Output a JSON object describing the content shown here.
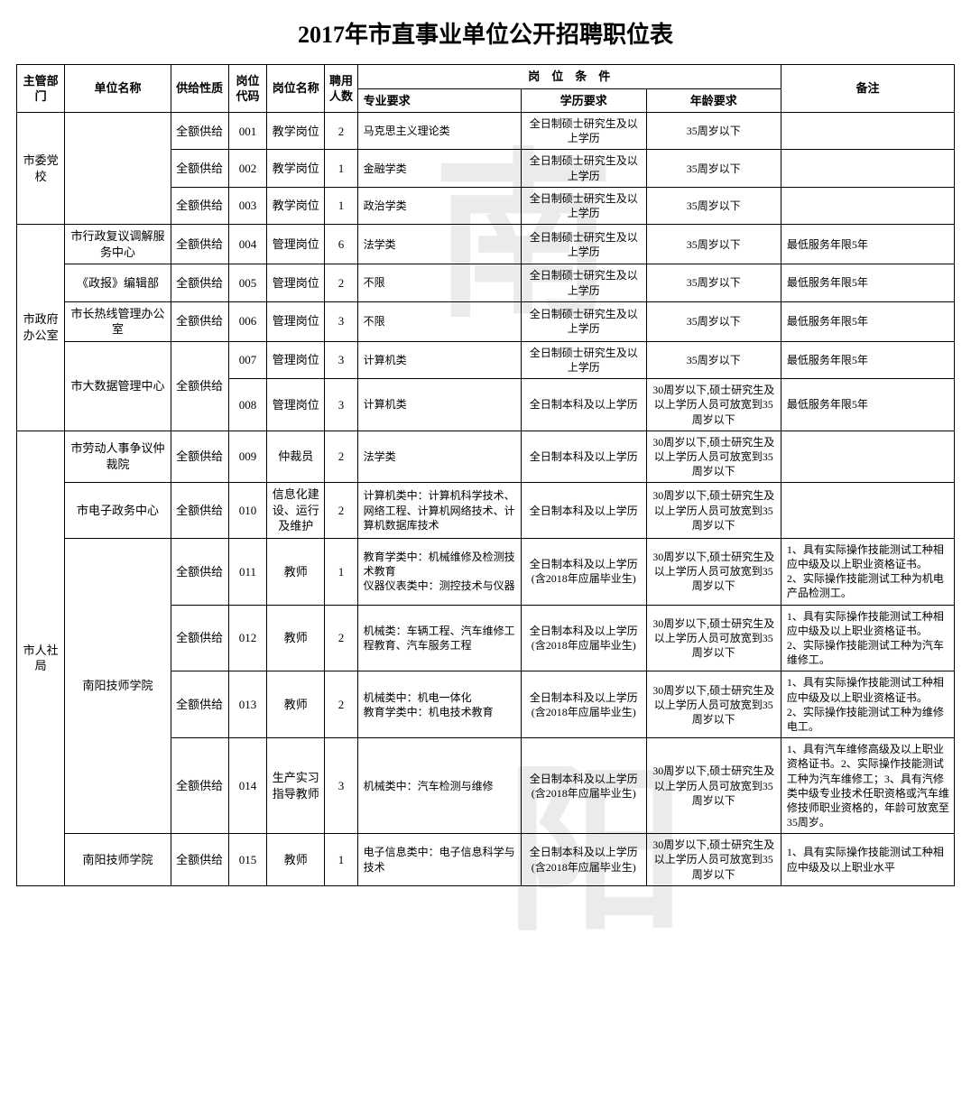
{
  "title": "2017年市直事业单位公开招聘职位表",
  "headers": {
    "dept": "主管部门",
    "unit": "单位名称",
    "supply": "供给性质",
    "code": "岗位代码",
    "posname": "岗位名称",
    "count": "聘用人数",
    "cond_group": "岗　位　条　件",
    "major": "专业要求",
    "edu": "学历要求",
    "age": "年龄要求",
    "note": "备注"
  },
  "depts": [
    {
      "name": "市委党校",
      "units": [
        {
          "name": "",
          "rows": [
            {
              "supply": "全额供给",
              "code": "001",
              "posname": "教学岗位",
              "count": "2",
              "major": "马克思主义理论类",
              "edu": "全日制硕士研究生及以上学历",
              "age": "35周岁以下",
              "note": ""
            },
            {
              "supply": "全额供给",
              "code": "002",
              "posname": "教学岗位",
              "count": "1",
              "major": "金融学类",
              "edu": "全日制硕士研究生及以上学历",
              "age": "35周岁以下",
              "note": ""
            },
            {
              "supply": "全额供给",
              "code": "003",
              "posname": "教学岗位",
              "count": "1",
              "major": "政治学类",
              "edu": "全日制硕士研究生及以上学历",
              "age": "35周岁以下",
              "note": ""
            }
          ]
        }
      ]
    },
    {
      "name": "市政府办公室",
      "units": [
        {
          "name": "市行政复议调解服务中心",
          "rows": [
            {
              "supply": "全额供给",
              "code": "004",
              "posname": "管理岗位",
              "count": "6",
              "major": "法学类",
              "edu": "全日制硕士研究生及以上学历",
              "age": "35周岁以下",
              "note": "最低服务年限5年"
            }
          ]
        },
        {
          "name": "《政报》编辑部",
          "rows": [
            {
              "supply": "全额供给",
              "code": "005",
              "posname": "管理岗位",
              "count": "2",
              "major": "不限",
              "edu": "全日制硕士研究生及以上学历",
              "age": "35周岁以下",
              "note": "最低服务年限5年"
            }
          ]
        },
        {
          "name": "市长热线管理办公室",
          "rows": [
            {
              "supply": "全额供给",
              "code": "006",
              "posname": "管理岗位",
              "count": "3",
              "major": "不限",
              "edu": "全日制硕士研究生及以上学历",
              "age": "35周岁以下",
              "note": "最低服务年限5年"
            }
          ]
        },
        {
          "name": "市大数据管理中心",
          "rows": [
            {
              "supply": "全额供给",
              "code": "007",
              "posname": "管理岗位",
              "count": "3",
              "major": "计算机类",
              "edu": "全日制硕士研究生及以上学历",
              "age": "35周岁以下",
              "note": "最低服务年限5年"
            },
            {
              "supply": "",
              "code": "008",
              "posname": "管理岗位",
              "count": "3",
              "major": "计算机类",
              "edu": "全日制本科及以上学历",
              "age": "30周岁以下,硕士研究生及以上学历人员可放宽到35周岁以下",
              "note": "最低服务年限5年"
            }
          ]
        }
      ]
    },
    {
      "name": "市人社局",
      "units": [
        {
          "name": "市劳动人事争议仲裁院",
          "rows": [
            {
              "supply": "全额供给",
              "code": "009",
              "posname": "仲裁员",
              "count": "2",
              "major": "法学类",
              "edu": "全日制本科及以上学历",
              "age": "30周岁以下,硕士研究生及以上学历人员可放宽到35周岁以下",
              "note": ""
            }
          ]
        },
        {
          "name": "市电子政务中心",
          "rows": [
            {
              "supply": "全额供给",
              "code": "010",
              "posname": "信息化建设、运行及维护",
              "count": "2",
              "major": "计算机类中：计算机科学技术、网络工程、计算机网络技术、计算机数据库技术",
              "edu": "全日制本科及以上学历",
              "age": "30周岁以下,硕士研究生及以上学历人员可放宽到35周岁以下",
              "note": ""
            }
          ]
        },
        {
          "name": "南阳技师学院",
          "rows": [
            {
              "supply": "全额供给",
              "code": "011",
              "posname": "教师",
              "count": "1",
              "major": "教育学类中：机械维修及检测技术教育\n仪器仪表类中：测控技术与仪器",
              "edu": "全日制本科及以上学历(含2018年应届毕业生)",
              "age": "30周岁以下,硕士研究生及以上学历人员可放宽到35周岁以下",
              "note": "1、具有实际操作技能测试工种相应中级及以上职业资格证书。\n2、实际操作技能测试工种为机电产品检测工。"
            },
            {
              "supply": "全额供给",
              "code": "012",
              "posname": "教师",
              "count": "2",
              "major": "机械类：车辆工程、汽车维修工程教育、汽车服务工程",
              "edu": "全日制本科及以上学历(含2018年应届毕业生)",
              "age": "30周岁以下,硕士研究生及以上学历人员可放宽到35周岁以下",
              "note": "1、具有实际操作技能测试工种相应中级及以上职业资格证书。\n2、实际操作技能测试工种为汽车维修工。"
            },
            {
              "supply": "全额供给",
              "code": "013",
              "posname": "教师",
              "count": "2",
              "major": "机械类中：机电一体化\n教育学类中：机电技术教育",
              "edu": "全日制本科及以上学历(含2018年应届毕业生)",
              "age": "30周岁以下,硕士研究生及以上学历人员可放宽到35周岁以下",
              "note": "1、具有实际操作技能测试工种相应中级及以上职业资格证书。\n2、实际操作技能测试工种为维修电工。"
            },
            {
              "supply": "全额供给",
              "code": "014",
              "posname": "生产实习指导教师",
              "count": "3",
              "major": "机械类中：汽车检测与维修",
              "edu": "全日制本科及以上学历(含2018年应届毕业生)",
              "age": "30周岁以下,硕士研究生及以上学历人员可放宽到35周岁以下",
              "note": "1、具有汽车维修高级及以上职业资格证书。2、实际操作技能测试工种为汽车维修工；3、具有汽修类中级专业技术任职资格或汽车维修技师职业资格的，年龄可放宽至35周岁。"
            }
          ]
        },
        {
          "name": "南阳技师学院",
          "rows": [
            {
              "supply": "全额供给",
              "code": "015",
              "posname": "教师",
              "count": "1",
              "major": "电子信息类中：电子信息科学与技术",
              "edu": "全日制本科及以上学历(含2018年应届毕业生)",
              "age": "30周岁以下,硕士研究生及以上学历人员可放宽到35周岁以下",
              "note": "1、具有实际操作技能测试工种相应中级及以上职业水平"
            }
          ]
        }
      ]
    }
  ]
}
